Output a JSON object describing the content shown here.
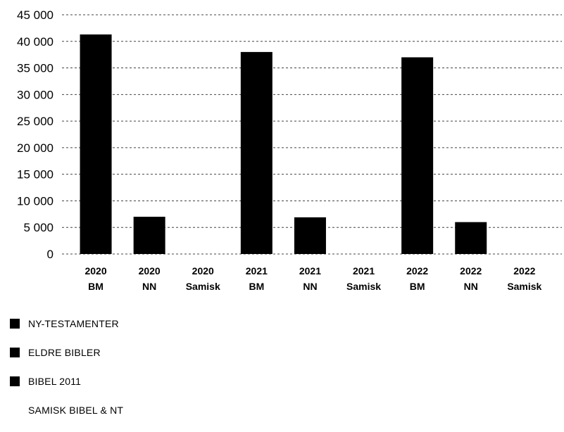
{
  "chart_data": {
    "type": "bar",
    "categories": [
      [
        "2020",
        "BM"
      ],
      [
        "2020",
        "NN"
      ],
      [
        "2020",
        "Samisk"
      ],
      [
        "2021",
        "BM"
      ],
      [
        "2021",
        "NN"
      ],
      [
        "2021",
        "Samisk"
      ],
      [
        "2022",
        "BM"
      ],
      [
        "2022",
        "NN"
      ],
      [
        "2022",
        "Samisk"
      ]
    ],
    "values": [
      41300,
      7000,
      0,
      38000,
      6900,
      0,
      37000,
      6000,
      0
    ],
    "ylim": [
      0,
      45000
    ],
    "yticks": [
      0,
      5000,
      10000,
      15000,
      20000,
      25000,
      30000,
      35000,
      40000,
      45000
    ],
    "ytick_labels": [
      "0",
      "5 000",
      "10 000",
      "15 000",
      "20 000",
      "25 000",
      "30 000",
      "35 000",
      "40 000",
      "45 000"
    ],
    "grid": true,
    "bar_color": "#000000",
    "legend_position": "bottom-left",
    "legend": [
      {
        "label": "NY-TESTAMENTER",
        "color": "#000000",
        "swatch": true
      },
      {
        "label": "ELDRE BIBLER",
        "color": "#000000",
        "swatch": true
      },
      {
        "label": "BIBEL 2011",
        "color": "#000000",
        "swatch": true
      },
      {
        "label": "SAMISK BIBEL & NT",
        "color": "#ffffff",
        "swatch": false
      }
    ]
  }
}
